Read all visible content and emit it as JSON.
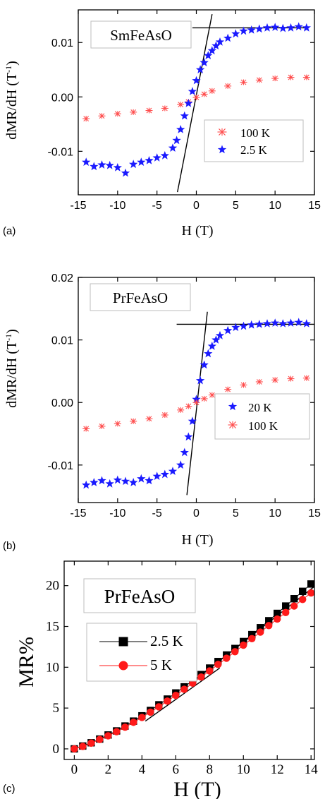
{
  "chart_data": [
    {
      "panel": "(a)",
      "type": "scatter",
      "title": "SmFeAsO",
      "xlabel": "H (T)",
      "ylabel": "dMR/dH (T⁻¹)",
      "xlim": [
        -15,
        15
      ],
      "ylim": [
        -0.018,
        0.016
      ],
      "xticks": [
        "-15",
        "-10",
        "-5",
        "0",
        "5",
        "10",
        "15"
      ],
      "yticks": [
        "-0.01",
        "0.00",
        "0.01"
      ],
      "legend_position": "lower-right",
      "series": [
        {
          "name": "100 K",
          "marker": "asterisk",
          "color": "#ff4d4d",
          "x": [
            -14,
            -12,
            -10,
            -8,
            -6,
            -4,
            -2,
            -1,
            0,
            1,
            2,
            4,
            6,
            8,
            10,
            12,
            14
          ],
          "y": [
            -0.004,
            -0.0035,
            -0.0031,
            -0.0028,
            -0.0025,
            -0.0021,
            -0.0014,
            -0.0009,
            -0.0001,
            0.0005,
            0.0011,
            0.002,
            0.0027,
            0.0031,
            0.0034,
            0.0036,
            0.0036
          ]
        },
        {
          "name": "2.5 K",
          "marker": "star",
          "color": "#1a1aff",
          "x": [
            -14,
            -13,
            -12,
            -11,
            -10,
            -9,
            -8,
            -7,
            -6,
            -5,
            -4,
            -3,
            -2.5,
            -2,
            -1.5,
            -1,
            -0.5,
            0,
            0.5,
            1,
            1.5,
            2,
            2.5,
            3,
            4,
            5,
            6,
            7,
            8,
            9,
            10,
            11,
            12,
            13,
            14
          ],
          "y": [
            -0.012,
            -0.0128,
            -0.0125,
            -0.0126,
            -0.013,
            -0.014,
            -0.0124,
            -0.012,
            -0.0117,
            -0.0112,
            -0.0108,
            -0.0094,
            -0.008,
            -0.006,
            -0.0035,
            -0.0012,
            0.001,
            0.003,
            0.005,
            0.0063,
            0.0076,
            0.0085,
            0.0094,
            0.0101,
            0.0108,
            0.0116,
            0.0121,
            0.0123,
            0.0125,
            0.0127,
            0.0128,
            0.0126,
            0.0127,
            0.0129,
            0.0127
          ]
        }
      ],
      "guide_lines": [
        {
          "x": [
            -2.4,
            2.0
          ],
          "y": [
            -0.0175,
            0.0152
          ]
        },
        {
          "x": [
            -0.5,
            14.0
          ],
          "y": [
            0.0127,
            0.0127
          ]
        }
      ]
    },
    {
      "panel": "(b)",
      "type": "scatter",
      "title": "PrFeAsO",
      "xlabel": "H (T)",
      "ylabel": "dMR/dH (T⁻¹)",
      "xlim": [
        -15,
        15
      ],
      "ylim": [
        -0.016,
        0.02
      ],
      "xticks": [
        "-15",
        "-10",
        "-5",
        "0",
        "5",
        "10",
        "15"
      ],
      "yticks": [
        "-0.01",
        "0.00",
        "0.01",
        "0.02"
      ],
      "legend_position": "lower-right",
      "series": [
        {
          "name": "20 K",
          "marker": "star",
          "color": "#1a1aff",
          "x": [
            -14,
            -13,
            -12,
            -11,
            -10,
            -9,
            -8,
            -7,
            -6,
            -5,
            -4,
            -3,
            -2,
            -1.5,
            -1,
            -0.5,
            0,
            0.5,
            1,
            1.5,
            2,
            2.5,
            3,
            4,
            5,
            6,
            7,
            8,
            9,
            10,
            11,
            12,
            13,
            14
          ],
          "y": [
            -0.0132,
            -0.0128,
            -0.0125,
            -0.013,
            -0.0124,
            -0.0126,
            -0.0128,
            -0.0122,
            -0.0125,
            -0.0118,
            -0.0115,
            -0.011,
            -0.01,
            -0.008,
            -0.0055,
            -0.003,
            0.0005,
            0.0035,
            0.006,
            0.0078,
            0.009,
            0.01,
            0.0107,
            0.0115,
            0.012,
            0.0122,
            0.0124,
            0.0125,
            0.0126,
            0.0127,
            0.0126,
            0.0127,
            0.0128,
            0.0126
          ]
        },
        {
          "name": "100 K",
          "marker": "asterisk",
          "color": "#ff4d4d",
          "x": [
            -14,
            -12,
            -10,
            -8,
            -6,
            -4,
            -2,
            -1,
            0,
            1,
            2,
            4,
            6,
            8,
            10,
            12,
            14
          ],
          "y": [
            -0.0042,
            -0.0038,
            -0.0034,
            -0.003,
            -0.0026,
            -0.002,
            -0.0012,
            -0.0006,
            0.0,
            0.0006,
            0.0012,
            0.0021,
            0.0028,
            0.0033,
            0.0036,
            0.0038,
            0.0039
          ]
        }
      ],
      "guide_lines": [
        {
          "x": [
            -1.2,
            1.4
          ],
          "y": [
            -0.0148,
            0.0145
          ]
        },
        {
          "x": [
            -2.5,
            15.0
          ],
          "y": [
            0.0125,
            0.0125
          ]
        }
      ]
    },
    {
      "panel": "(c)",
      "type": "line",
      "title": "PrFeAsO",
      "xlabel": "H (T)",
      "ylabel": "MR%",
      "xlim": [
        -0.6,
        14.2
      ],
      "ylim": [
        -1.3,
        23
      ],
      "xticks": [
        "0",
        "2",
        "4",
        "6",
        "8",
        "10",
        "12",
        "14"
      ],
      "yticks": [
        "0",
        "5",
        "10",
        "15",
        "20"
      ],
      "legend_position": "upper-left",
      "series": [
        {
          "name": "2.5 K",
          "marker": "square",
          "color": "#000000",
          "x": [
            0,
            0.5,
            1,
            1.5,
            2,
            2.5,
            3,
            3.5,
            4,
            4.5,
            5,
            5.5,
            6,
            6.5,
            7,
            7.5,
            8,
            8.5,
            9,
            9.5,
            10,
            10.5,
            11,
            11.5,
            12,
            12.5,
            13,
            13.5,
            14
          ],
          "y": [
            0,
            0.35,
            0.75,
            1.2,
            1.7,
            2.2,
            2.8,
            3.4,
            4.05,
            4.7,
            5.4,
            6.1,
            6.85,
            7.6,
            8.35,
            9.1,
            9.9,
            10.7,
            11.5,
            12.3,
            13.15,
            14.0,
            14.85,
            15.7,
            16.6,
            17.5,
            18.4,
            19.3,
            20.2
          ]
        },
        {
          "name": "5 K",
          "marker": "circle",
          "color": "#ff1a1a",
          "x": [
            0,
            0.5,
            1,
            1.5,
            2,
            2.5,
            3,
            3.5,
            4,
            4.5,
            5,
            5.5,
            6,
            6.5,
            7,
            7.5,
            8,
            8.5,
            9,
            9.5,
            10,
            10.5,
            11,
            11.5,
            12,
            12.5,
            13,
            13.5,
            14
          ],
          "y": [
            0,
            0.3,
            0.7,
            1.15,
            1.6,
            2.1,
            2.65,
            3.25,
            3.85,
            4.5,
            5.15,
            5.85,
            6.55,
            7.3,
            8.05,
            8.8,
            9.55,
            10.35,
            11.1,
            11.9,
            12.7,
            13.5,
            14.3,
            15.1,
            15.9,
            16.7,
            17.5,
            18.3,
            19.1
          ]
        }
      ],
      "guide_lines": [
        {
          "x": [
            4.2,
            8.6
          ],
          "y": [
            3.4,
            9.9
          ]
        },
        {
          "x": [
            7.0,
            14.2
          ],
          "y": [
            8.2,
            19.9
          ]
        }
      ]
    }
  ],
  "panel_a": {
    "tag": "(a)",
    "title": "SmFeAsO",
    "xlabel": "H (T)",
    "legend": [
      "100 K",
      "2.5 K"
    ]
  },
  "panel_b": {
    "tag": "(b)",
    "title": "PrFeAsO",
    "xlabel": "H (T)",
    "legend": [
      "20 K",
      "100 K"
    ]
  },
  "panel_c": {
    "tag": "(c)",
    "title": "PrFeAsO",
    "xlabel": "H (T)",
    "ylabel": "MR%",
    "legend": [
      "2.5 K",
      "5 K"
    ]
  }
}
